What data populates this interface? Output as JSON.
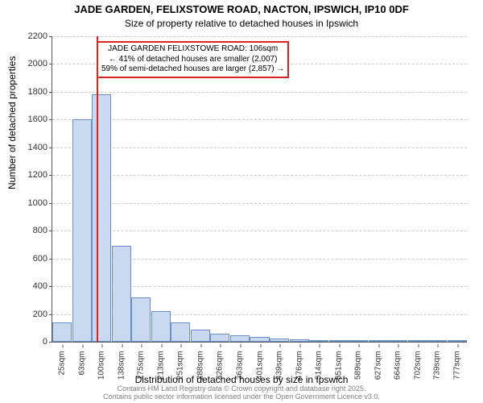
{
  "title_main": "JADE GARDEN, FELIXSTOWE ROAD, NACTON, IPSWICH, IP10 0DF",
  "title_sub": "Size of property relative to detached houses in Ipswich",
  "xlabel": "Distribution of detached houses by size in Ipswich",
  "ylabel": "Number of detached properties",
  "footer_line1": "Contains HM Land Registry data © Crown copyright and database right 2025.",
  "footer_line2": "Contains public sector information licensed under the Open Government Licence v3.0.",
  "chart": {
    "type": "histogram",
    "ylim": [
      0,
      2200
    ],
    "ytick_step": 200,
    "bar_fill": "#c9d9f0",
    "bar_border": "#6b8fc9",
    "background": "#ffffff",
    "grid_color": "#cccccc",
    "marker_color": "#dd2222",
    "categories": [
      "25sqm",
      "63sqm",
      "100sqm",
      "138sqm",
      "175sqm",
      "213sqm",
      "251sqm",
      "288sqm",
      "326sqm",
      "363sqm",
      "401sqm",
      "439sqm",
      "476sqm",
      "514sqm",
      "551sqm",
      "589sqm",
      "627sqm",
      "664sqm",
      "702sqm",
      "739sqm",
      "777sqm"
    ],
    "values": [
      140,
      1600,
      1780,
      690,
      320,
      220,
      140,
      90,
      60,
      45,
      35,
      25,
      20,
      14,
      10,
      8,
      6,
      5,
      4,
      3,
      2
    ],
    "marker_index": 2,
    "infobox": {
      "line1": "JADE GARDEN FELIXSTOWE ROAD: 106sqm",
      "line2": "← 41% of detached houses are smaller (2,007)",
      "line3": "59% of semi-detached houses are larger (2,857) →"
    }
  }
}
